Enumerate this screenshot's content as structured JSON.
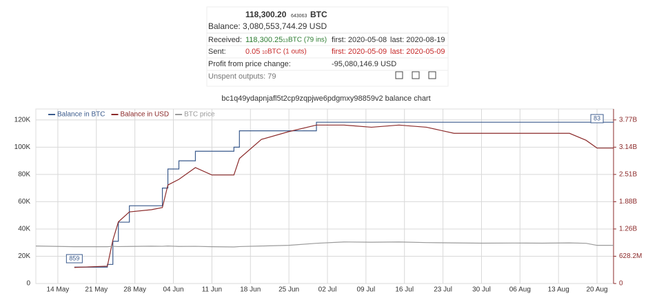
{
  "summary": {
    "balance_btc": "118,300.20",
    "balance_btc_small": "643063",
    "balance_btc_unit": "BTC",
    "balance_usd": "Balance: 3,080,553,744.29 USD",
    "received_label": "Received:",
    "received_amount": "118,300.25",
    "received_small": "13",
    "received_unit": "BTC (79 ins)",
    "received_first": "first: 2020-05-08",
    "received_last": "last: 2020-08-19",
    "sent_label": "Sent:",
    "sent_amount": "0.05",
    "sent_small": "10",
    "sent_unit": "BTC (1 outs)",
    "sent_first": "first: 2020-05-09",
    "sent_last": "last: 2020-05-09",
    "profit_label": "Profit from price change:",
    "profit_value": "-95,080,146.9 USD",
    "unspent": "Unspent outputs: 79"
  },
  "chart_data": {
    "type": "line",
    "title": "bc1q49ydapnjafl5t2cp9zqpjwe6pdgmxy98859v2 balance chart",
    "x": [
      "2020-05-10",
      "2020-05-17",
      "2020-05-23",
      "2020-05-24",
      "2020-05-25",
      "2020-05-27",
      "2020-05-31",
      "2020-06-02",
      "2020-06-03",
      "2020-06-05",
      "2020-06-08",
      "2020-06-11",
      "2020-06-15",
      "2020-06-16",
      "2020-06-20",
      "2020-06-25",
      "2020-06-30",
      "2020-07-05",
      "2020-07-10",
      "2020-07-15",
      "2020-07-20",
      "2020-07-25",
      "2020-07-30",
      "2020-08-05",
      "2020-08-10",
      "2020-08-15",
      "2020-08-18",
      "2020-08-20",
      "2020-08-23"
    ],
    "series": [
      {
        "name": "Balance in BTC",
        "color": "#3a5a8c",
        "step": true,
        "values": [
          null,
          12000,
          14000,
          31000,
          45000,
          57000,
          57000,
          70000,
          84000,
          90000,
          97000,
          97000,
          100000,
          112000,
          112000,
          112000,
          118300,
          118300,
          118300,
          118300,
          118300,
          118300,
          118300,
          118300,
          118300,
          118300,
          118300,
          118300,
          118300
        ]
      },
      {
        "name": "Balance in USD",
        "color": "#8b2a2a",
        "axis": "y2",
        "values": [
          null,
          370000000,
          400000000,
          1000000000,
          1420000000,
          1650000000,
          1700000000,
          1750000000,
          2270000000,
          2400000000,
          2670000000,
          2500000000,
          2500000000,
          2880000000,
          3320000000,
          3500000000,
          3650000000,
          3650000000,
          3600000000,
          3650000000,
          3600000000,
          3460000000,
          3460000000,
          3460000000,
          3460000000,
          3460000000,
          3300000000,
          3120000000,
          3120000000
        ]
      },
      {
        "name": "BTC price",
        "color": "#9a9a9a",
        "values": [
          27500,
          27000,
          27000,
          27300,
          27100,
          27200,
          27400,
          27300,
          27500,
          27200,
          27300,
          27000,
          26800,
          27100,
          27500,
          28000,
          29500,
          30500,
          30300,
          30500,
          30000,
          29800,
          29600,
          29700,
          29600,
          29800,
          29500,
          28000,
          28000
        ]
      }
    ],
    "annotations": [
      {
        "text": "859",
        "x": "2020-05-17"
      },
      {
        "text": "83",
        "x": "2020-08-20"
      }
    ],
    "xlim": [
      "2020-05-10",
      "2020-08-23"
    ],
    "xticks": [
      {
        "value": "2020-05-14",
        "label": "14 May"
      },
      {
        "value": "2020-05-21",
        "label": "21 May"
      },
      {
        "value": "2020-05-28",
        "label": "28 May"
      },
      {
        "value": "2020-06-04",
        "label": "04 Jun"
      },
      {
        "value": "2020-06-11",
        "label": "11 Jun"
      },
      {
        "value": "2020-06-18",
        "label": "18 Jun"
      },
      {
        "value": "2020-06-25",
        "label": "25 Jun"
      },
      {
        "value": "2020-07-02",
        "label": "02 Jul"
      },
      {
        "value": "2020-07-09",
        "label": "09 Jul"
      },
      {
        "value": "2020-07-16",
        "label": "16 Jul"
      },
      {
        "value": "2020-07-23",
        "label": "23 Jul"
      },
      {
        "value": "2020-07-30",
        "label": "30 Jul"
      },
      {
        "value": "2020-08-06",
        "label": "06 Aug"
      },
      {
        "value": "2020-08-13",
        "label": "13 Aug"
      },
      {
        "value": "2020-08-20",
        "label": "20 Aug"
      }
    ],
    "ylim": [
      0,
      128000
    ],
    "yticks": [
      0,
      {
        "value": 20000,
        "label": "20K"
      },
      {
        "value": 40000,
        "label": "40K"
      },
      {
        "value": 60000,
        "label": "60K"
      },
      {
        "value": 80000,
        "label": "80K"
      },
      {
        "value": 100000,
        "label": "100K"
      },
      {
        "value": 120000,
        "label": "120K"
      }
    ],
    "y2lim": [
      0,
      4020480000
    ],
    "y2ticks": [
      0,
      {
        "value": 628200000,
        "label": "628.2M"
      },
      {
        "value": 1256400000,
        "label": "1.26B"
      },
      {
        "value": 1884600000,
        "label": "1.88B"
      },
      {
        "value": 2512800000,
        "label": "2.51B"
      },
      {
        "value": 3141000000,
        "label": "3.14B"
      },
      {
        "value": 3769200000,
        "label": "3.77B"
      }
    ],
    "grid": true
  }
}
